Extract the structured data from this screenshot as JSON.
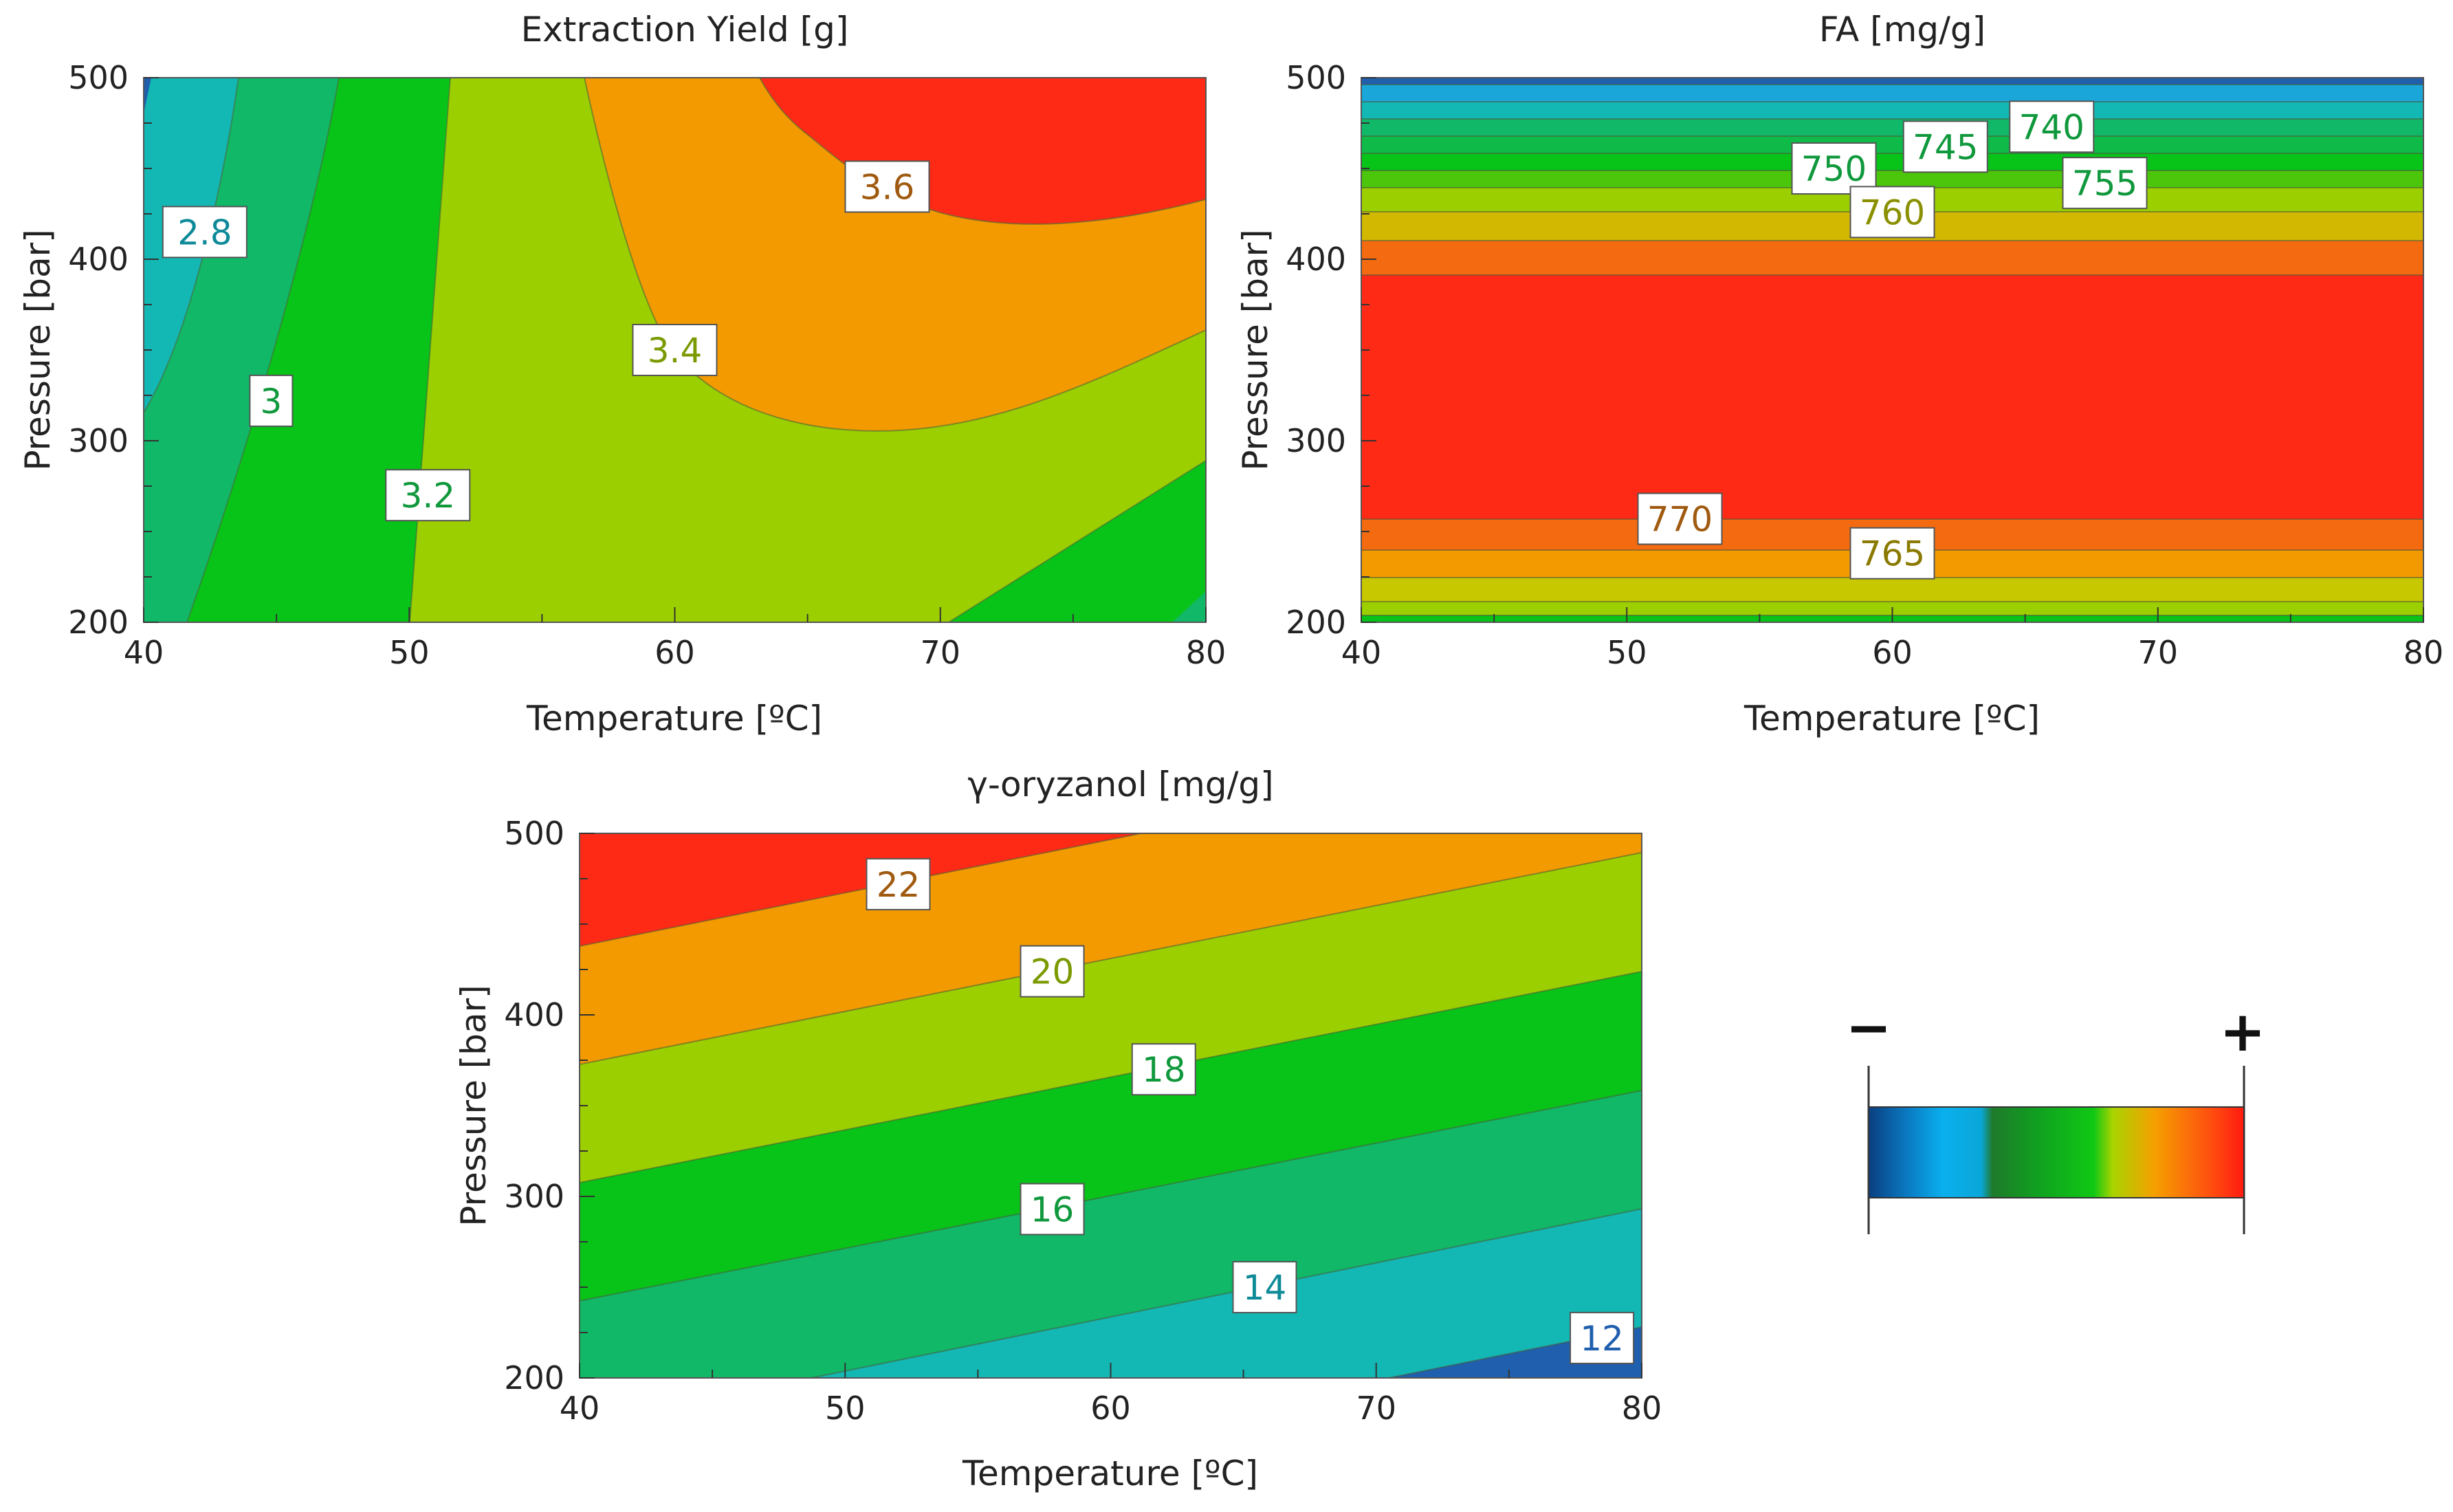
{
  "chart_data": [
    {
      "type": "contour",
      "title": "Extraction Yield [g]",
      "xlabel": "Temperature [ºC]",
      "ylabel": "Pressure [bar]",
      "xlim": [
        40,
        80
      ],
      "ylim": [
        200,
        500
      ],
      "xticks": [
        40,
        50,
        60,
        70,
        80
      ],
      "yticks": [
        200,
        300,
        400,
        500
      ],
      "contour_levels": [
        2.6,
        2.8,
        3.0,
        3.2,
        3.4,
        3.6
      ],
      "contour_labels": [
        {
          "text": "2.8",
          "x": 42.3,
          "y": 415
        },
        {
          "text": "3",
          "x": 44.8,
          "y": 322
        },
        {
          "text": "3.2",
          "x": 50.7,
          "y": 270
        },
        {
          "text": "3.4",
          "x": 60.0,
          "y": 350
        },
        {
          "text": "3.6",
          "x": 68.0,
          "y": 440
        }
      ]
    },
    {
      "type": "contour",
      "title": "FA [mg/g]",
      "xlabel": "Temperature [ºC]",
      "ylabel": "Pressure [bar]",
      "xlim": [
        40,
        80
      ],
      "ylim": [
        200,
        500
      ],
      "xticks": [
        40,
        50,
        60,
        70,
        80
      ],
      "yticks": [
        200,
        300,
        400,
        500
      ],
      "contour_labels": [
        {
          "text": "740",
          "x": 66.0,
          "y": 473
        },
        {
          "text": "745",
          "x": 62.0,
          "y": 462
        },
        {
          "text": "750",
          "x": 57.8,
          "y": 450
        },
        {
          "text": "755",
          "x": 68.0,
          "y": 442
        },
        {
          "text": "760",
          "x": 60.0,
          "y": 426
        },
        {
          "text": "770",
          "x": 52.0,
          "y": 257
        },
        {
          "text": "765",
          "x": 60.0,
          "y": 238
        }
      ]
    },
    {
      "type": "contour",
      "title": "γ-oryzanol [mg/g]",
      "xlabel": "Temperature [ºC]",
      "ylabel": "Pressure [bar]",
      "xlim": [
        40,
        80
      ],
      "ylim": [
        200,
        500
      ],
      "xticks": [
        40,
        50,
        60,
        70,
        80
      ],
      "yticks": [
        200,
        300,
        400,
        500
      ],
      "contour_levels": [
        12,
        14,
        16,
        18,
        20,
        22
      ],
      "contour_labels": [
        {
          "text": "22",
          "x": 52.0,
          "y": 472
        },
        {
          "text": "20",
          "x": 57.8,
          "y": 424
        },
        {
          "text": "18",
          "x": 62.0,
          "y": 370
        },
        {
          "text": "16",
          "x": 57.8,
          "y": 293
        },
        {
          "text": "14",
          "x": 65.8,
          "y": 250
        },
        {
          "text": "12",
          "x": 78.5,
          "y": 222
        }
      ]
    }
  ],
  "colorbar": {
    "min_label": "−",
    "max_label": "+",
    "colors": [
      "#0a3f80",
      "#0aaae6",
      "#1e7a2a",
      "#10c814",
      "#a8d400",
      "#f5a000",
      "#ff2a10"
    ]
  },
  "palette": {
    "dark_blue": "#1f5fae",
    "blue": "#1aa6d8",
    "cyan": "#13b7b4",
    "teal_green": "#10b868",
    "green": "#08c318",
    "yellow_green": "#9ccf00",
    "yellow": "#c8c800",
    "orange": "#f29a00",
    "red_orange": "#f46a10",
    "red": "#fe2a16"
  }
}
